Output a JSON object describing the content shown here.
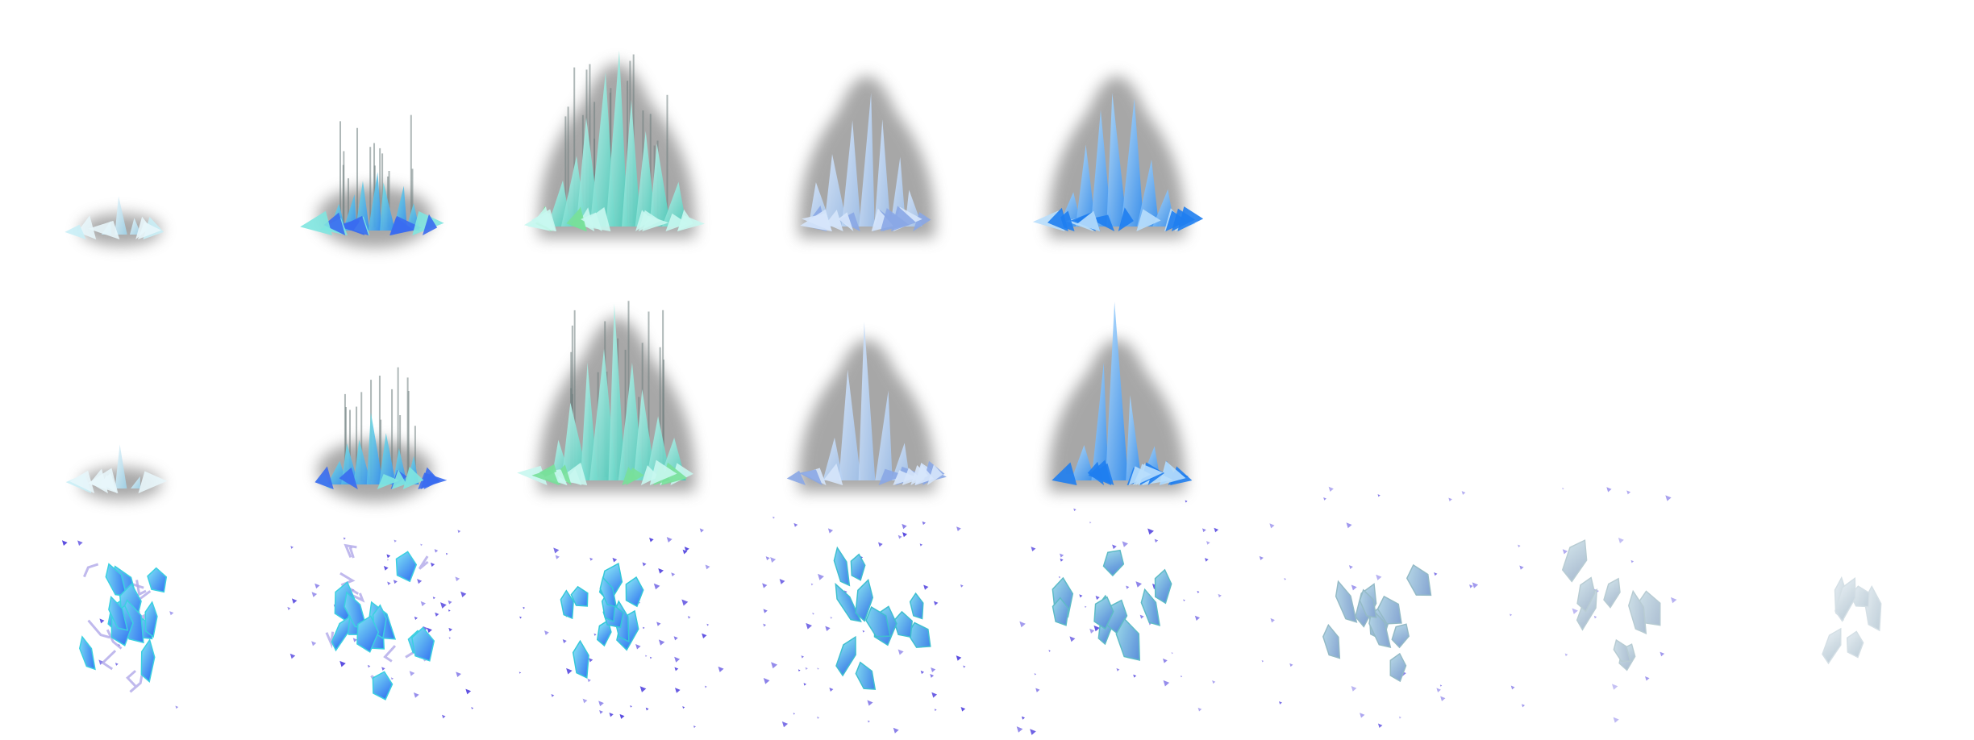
{
  "sprite_sheet": {
    "rows": [
      {
        "id": "row-grow-a",
        "kind": "grow",
        "variant": "a",
        "frames": 5
      },
      {
        "id": "row-grow-b",
        "kind": "grow",
        "variant": "b",
        "frames": 5
      },
      {
        "id": "row-shatter",
        "kind": "shatter",
        "frames": 8
      }
    ],
    "colors": {
      "background": "#ffffff",
      "halo": "#8a8a8a",
      "ice_cyan": "#7fe6e0",
      "ice_blue": "#2f8cf0",
      "ice_pale": "#9fc0ea",
      "shard_violet": "#5a4ce0",
      "crack_lilac": "#b0a8e8"
    }
  }
}
